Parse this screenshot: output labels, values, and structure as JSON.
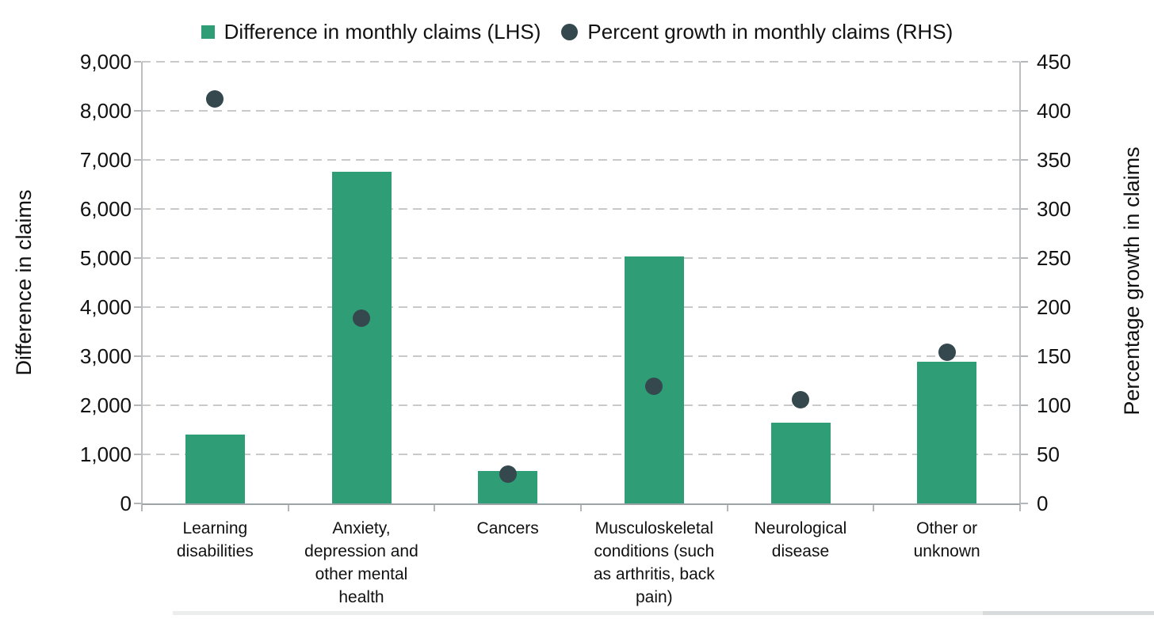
{
  "chart_data": {
    "type": "combo",
    "title": "",
    "categories": [
      "Learning disabilities",
      "Anxiety, depression and other mental health",
      "Cancers",
      "Musculoskeletal conditions (such as arthritis, back pain)",
      "Neurological disease",
      "Other or unknown"
    ],
    "category_display_lines": [
      [
        "Learning",
        "disabilities"
      ],
      [
        "Anxiety,",
        "depression and",
        "other mental",
        "health"
      ],
      [
        "Cancers"
      ],
      [
        "Musculoskeletal",
        "conditions (such",
        "as arthritis, back",
        "pain)"
      ],
      [
        "Neurological",
        "disease"
      ],
      [
        "Other or",
        "unknown"
      ]
    ],
    "series": [
      {
        "name": "Difference in monthly claims (LHS)",
        "chart_type": "bar",
        "axis": "left",
        "color": "#2f9e76",
        "values": [
          1400,
          6760,
          660,
          5030,
          1650,
          2890
        ]
      },
      {
        "name": "Percent growth in monthly claims (RHS)",
        "chart_type": "scatter",
        "axis": "right",
        "color": "#35484e",
        "values": [
          412,
          189,
          30,
          119,
          106,
          154
        ]
      }
    ],
    "left_axis": {
      "label": "Difference in claims",
      "min": 0,
      "max": 9000,
      "step": 1000,
      "tick_labels": [
        "0",
        "1,000",
        "2,000",
        "3,000",
        "4,000",
        "5,000",
        "6,000",
        "7,000",
        "8,000",
        "9,000"
      ]
    },
    "right_axis": {
      "label": "Percentage growth in claims",
      "min": 0,
      "max": 450,
      "step": 50,
      "tick_labels": [
        "0",
        "50",
        "100",
        "150",
        "200",
        "250",
        "300",
        "350",
        "400",
        "450"
      ]
    },
    "legend_position": "top",
    "grid": "horizontal-dashed"
  }
}
